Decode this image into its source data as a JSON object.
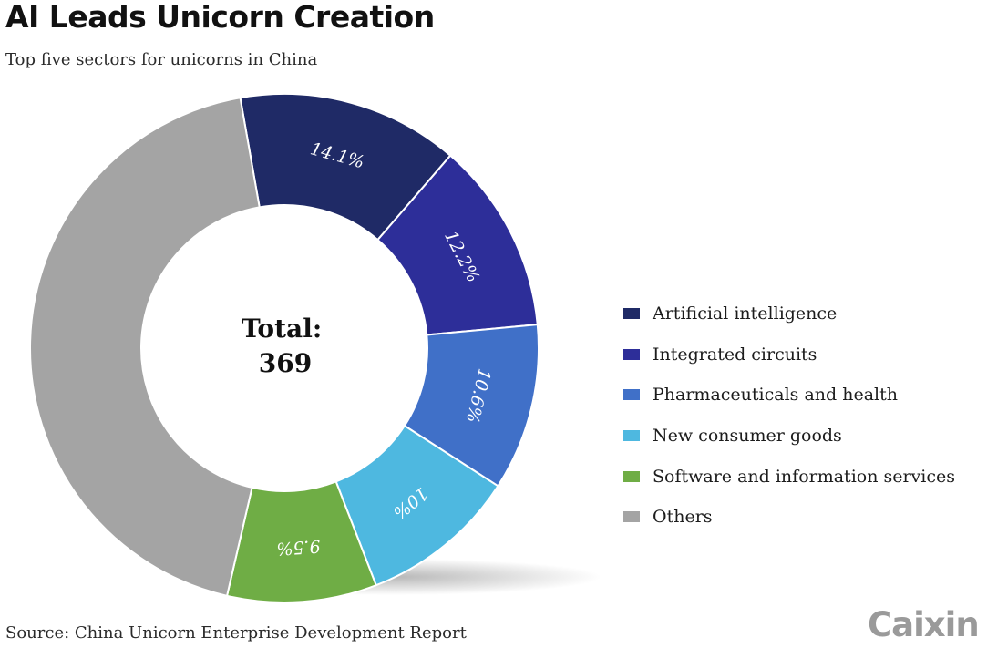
{
  "colors": {
    "background": "#ffffff",
    "title": "#111111",
    "logo": "#9a9a9a",
    "slice_border": "#ffffff"
  },
  "chart_data": {
    "type": "pie",
    "variant": "donut",
    "title": "AI Leads Unicorn Creation",
    "subtitle": "Top five sectors for unicorns in China",
    "center_label": [
      "Total:",
      "369"
    ],
    "total": 369,
    "start_angle_deg": -100,
    "slices": [
      {
        "name": "Artificial intelligence",
        "value": 14.1,
        "label": "14.1%",
        "color": "#1f2a66"
      },
      {
        "name": "Integrated circuits",
        "value": 12.2,
        "label": "12.2%",
        "color": "#2d2e99"
      },
      {
        "name": "Pharmaceuticals and health",
        "value": 10.6,
        "label": "10.6%",
        "color": "#4070c8"
      },
      {
        "name": "New consumer goods",
        "value": 10.0,
        "label": "10%",
        "color": "#4eb8e0"
      },
      {
        "name": "Software and information services",
        "value": 9.5,
        "label": "9.5%",
        "color": "#6fad45"
      },
      {
        "name": "Others",
        "value": 43.6,
        "label": "",
        "color": "#a4a4a4"
      }
    ],
    "legend_placement": "right"
  },
  "source": "Source: China Unicorn Enterprise Development Report",
  "logo": "Caixin"
}
